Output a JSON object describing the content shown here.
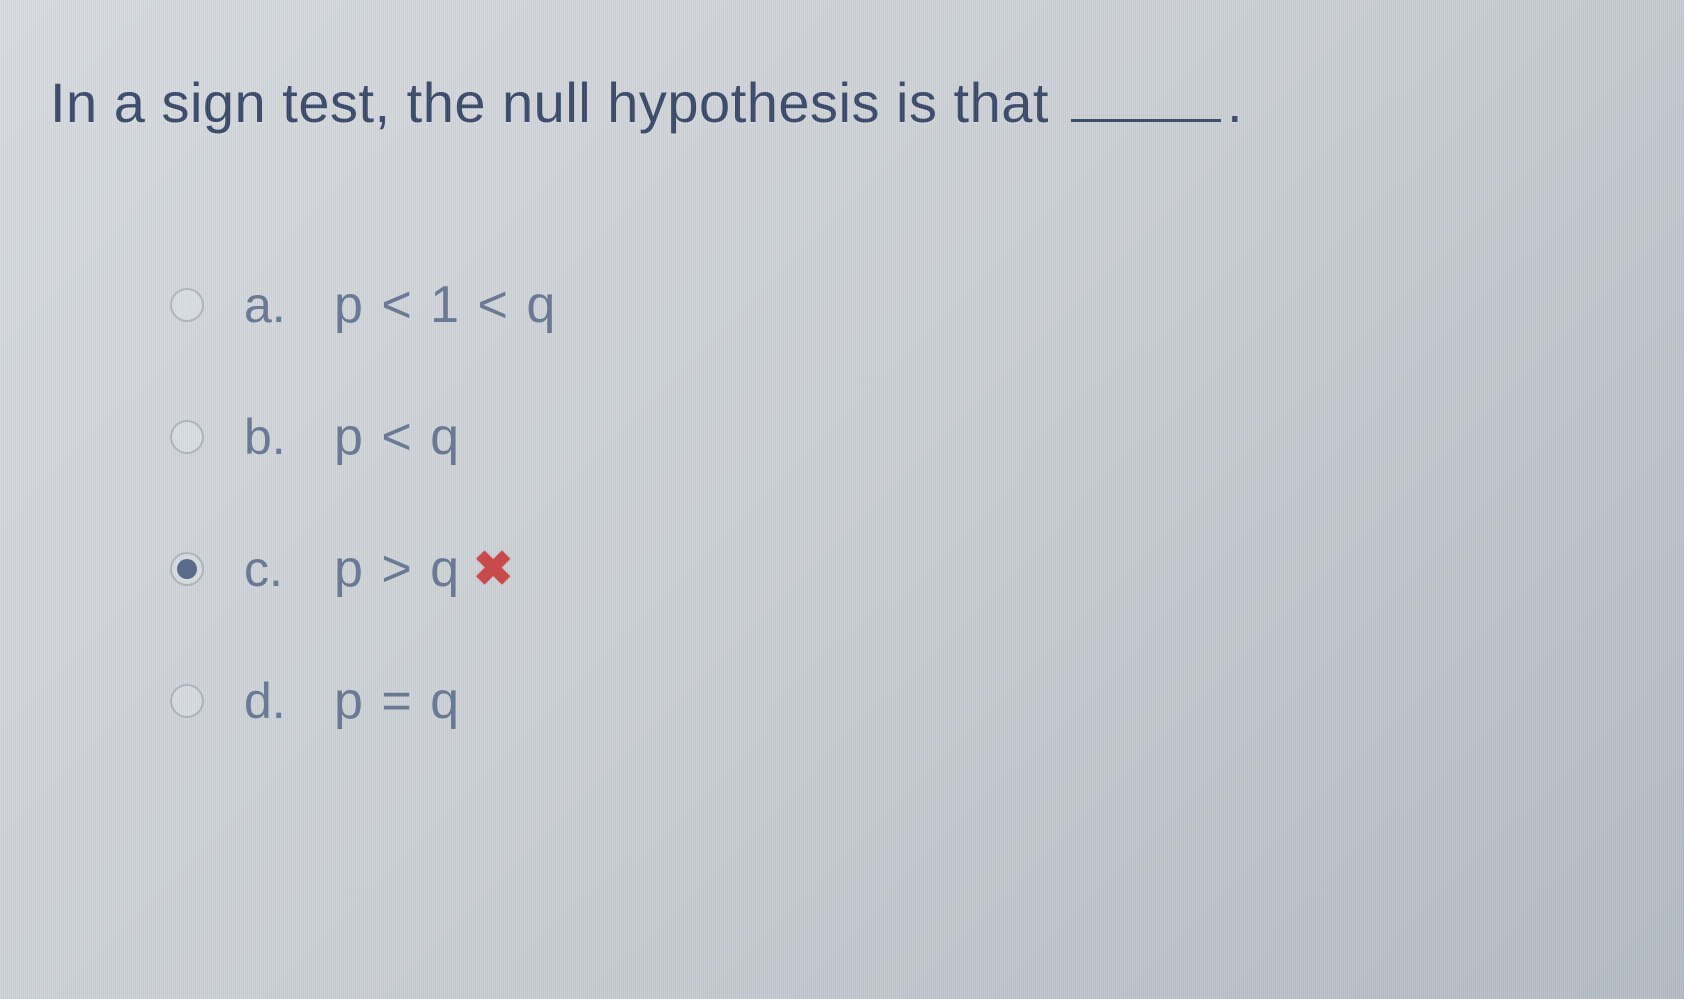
{
  "question": {
    "prefix": "In a sign test, the null hypothesis is that ",
    "suffix": "."
  },
  "options": [
    {
      "label": "a.",
      "text": "p < 1 < q",
      "selected": false,
      "marked_wrong": false
    },
    {
      "label": "b.",
      "text": "p < q",
      "selected": false,
      "marked_wrong": false
    },
    {
      "label": "c.",
      "text": "p > q",
      "selected": true,
      "marked_wrong": true
    },
    {
      "label": "d.",
      "text": "p = q",
      "selected": false,
      "marked_wrong": false
    }
  ],
  "colors": {
    "text_primary": "#3a4a6a",
    "text_option": "#6a7a95",
    "wrong_mark": "#c84a4a",
    "background_start": "#d8dce0",
    "background_end": "#b5bcc5"
  },
  "typography": {
    "question_fontsize": 56,
    "option_fontsize": 52,
    "label_fontsize": 50,
    "mark_fontsize": 48
  },
  "wrong_mark_glyph": "✖"
}
